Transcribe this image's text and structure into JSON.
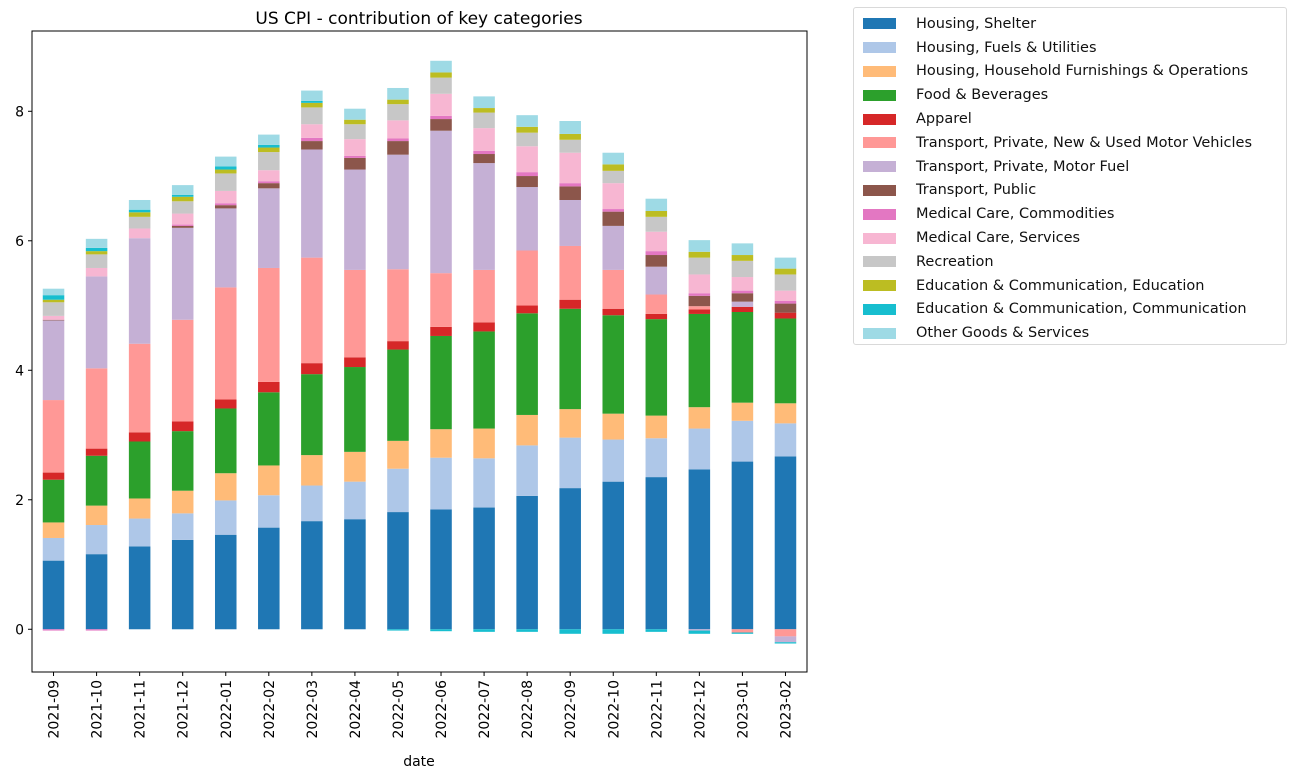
{
  "chart_data": {
    "type": "bar",
    "stacked": true,
    "title": "US CPI - contribution of key categories",
    "xlabel": "date",
    "ylabel": "",
    "ylim": [
      -0.66,
      9.24
    ],
    "yticks": [
      0,
      2,
      4,
      6,
      8
    ],
    "grid": false,
    "legend_position": "outside-top-right",
    "categories": [
      "2021-09",
      "2021-10",
      "2021-11",
      "2021-12",
      "2022-01",
      "2022-02",
      "2022-03",
      "2022-04",
      "2022-05",
      "2022-06",
      "2022-07",
      "2022-08",
      "2022-09",
      "2022-10",
      "2022-11",
      "2022-12",
      "2023-01",
      "2023-02"
    ],
    "series": [
      {
        "name": "Housing, Shelter",
        "color": "#1f77b4",
        "values": [
          1.06,
          1.16,
          1.28,
          1.38,
          1.46,
          1.57,
          1.67,
          1.7,
          1.81,
          1.85,
          1.88,
          2.06,
          2.18,
          2.28,
          2.35,
          2.47,
          2.59,
          2.67
        ]
      },
      {
        "name": "Housing, Fuels & Utilities",
        "color": "#aec7e8",
        "values": [
          0.35,
          0.45,
          0.43,
          0.41,
          0.53,
          0.5,
          0.55,
          0.58,
          0.67,
          0.8,
          0.76,
          0.78,
          0.78,
          0.65,
          0.6,
          0.63,
          0.63,
          0.51
        ]
      },
      {
        "name": "Housing, Household Furnishings & Operations",
        "color": "#ffbb78",
        "values": [
          0.24,
          0.3,
          0.31,
          0.35,
          0.42,
          0.46,
          0.47,
          0.46,
          0.43,
          0.44,
          0.46,
          0.47,
          0.44,
          0.4,
          0.35,
          0.33,
          0.28,
          0.31
        ]
      },
      {
        "name": "Food & Beverages",
        "color": "#2ca02c",
        "values": [
          0.66,
          0.77,
          0.88,
          0.92,
          1.0,
          1.13,
          1.25,
          1.31,
          1.41,
          1.44,
          1.5,
          1.57,
          1.55,
          1.52,
          1.49,
          1.44,
          1.4,
          1.31
        ]
      },
      {
        "name": "Apparel",
        "color": "#d62728",
        "values": [
          0.11,
          0.11,
          0.14,
          0.15,
          0.14,
          0.16,
          0.17,
          0.15,
          0.13,
          0.14,
          0.14,
          0.12,
          0.14,
          0.1,
          0.08,
          0.07,
          0.08,
          0.09
        ]
      },
      {
        "name": "Transport, Private, New & Used Motor Vehicles",
        "color": "#ff9896",
        "values": [
          1.12,
          1.24,
          1.37,
          1.57,
          1.73,
          1.76,
          1.63,
          1.35,
          1.11,
          0.83,
          0.81,
          0.85,
          0.83,
          0.6,
          0.3,
          0.05,
          -0.05,
          -0.11
        ]
      },
      {
        "name": "Transport, Private, Motor Fuel",
        "color": "#c5b0d5",
        "values": [
          1.23,
          1.42,
          1.63,
          1.42,
          1.22,
          1.23,
          1.67,
          1.55,
          1.77,
          2.2,
          1.65,
          0.98,
          0.71,
          0.68,
          0.43,
          -0.02,
          0.08,
          -0.09
        ]
      },
      {
        "name": "Transport, Public",
        "color": "#8c564b",
        "values": [
          0.01,
          0.0,
          0.0,
          0.03,
          0.05,
          0.08,
          0.13,
          0.18,
          0.21,
          0.18,
          0.14,
          0.17,
          0.21,
          0.22,
          0.18,
          0.16,
          0.13,
          0.14
        ]
      },
      {
        "name": "Medical Care, Commodities",
        "color": "#e377c2",
        "values": [
          -0.02,
          -0.02,
          0.0,
          0.02,
          0.03,
          0.03,
          0.05,
          0.03,
          0.04,
          0.05,
          0.05,
          0.06,
          0.05,
          0.04,
          0.06,
          0.04,
          0.04,
          0.04
        ]
      },
      {
        "name": "Medical Care, Services",
        "color": "#f7b6d2",
        "values": [
          0.06,
          0.13,
          0.15,
          0.17,
          0.19,
          0.17,
          0.21,
          0.26,
          0.28,
          0.34,
          0.35,
          0.4,
          0.47,
          0.4,
          0.3,
          0.29,
          0.21,
          0.16
        ]
      },
      {
        "name": "Recreation",
        "color": "#c7c7c7",
        "values": [
          0.21,
          0.21,
          0.18,
          0.19,
          0.27,
          0.28,
          0.26,
          0.23,
          0.25,
          0.25,
          0.24,
          0.21,
          0.2,
          0.19,
          0.23,
          0.26,
          0.25,
          0.25
        ]
      },
      {
        "name": "Education & Communication, Education",
        "color": "#bcbd22",
        "values": [
          0.04,
          0.05,
          0.07,
          0.07,
          0.06,
          0.07,
          0.07,
          0.07,
          0.07,
          0.08,
          0.07,
          0.09,
          0.09,
          0.1,
          0.09,
          0.09,
          0.09,
          0.09
        ]
      },
      {
        "name": "Education & Communication, Communication",
        "color": "#17becf",
        "values": [
          0.07,
          0.05,
          0.04,
          0.03,
          0.05,
          0.04,
          0.03,
          0.0,
          -0.02,
          -0.03,
          -0.04,
          -0.04,
          -0.07,
          -0.07,
          -0.04,
          -0.05,
          -0.02,
          -0.02
        ]
      },
      {
        "name": "Other Goods & Services",
        "color": "#9edae5",
        "values": [
          0.1,
          0.14,
          0.15,
          0.15,
          0.15,
          0.16,
          0.16,
          0.17,
          0.18,
          0.18,
          0.18,
          0.18,
          0.2,
          0.18,
          0.19,
          0.18,
          0.18,
          0.17
        ]
      }
    ]
  }
}
